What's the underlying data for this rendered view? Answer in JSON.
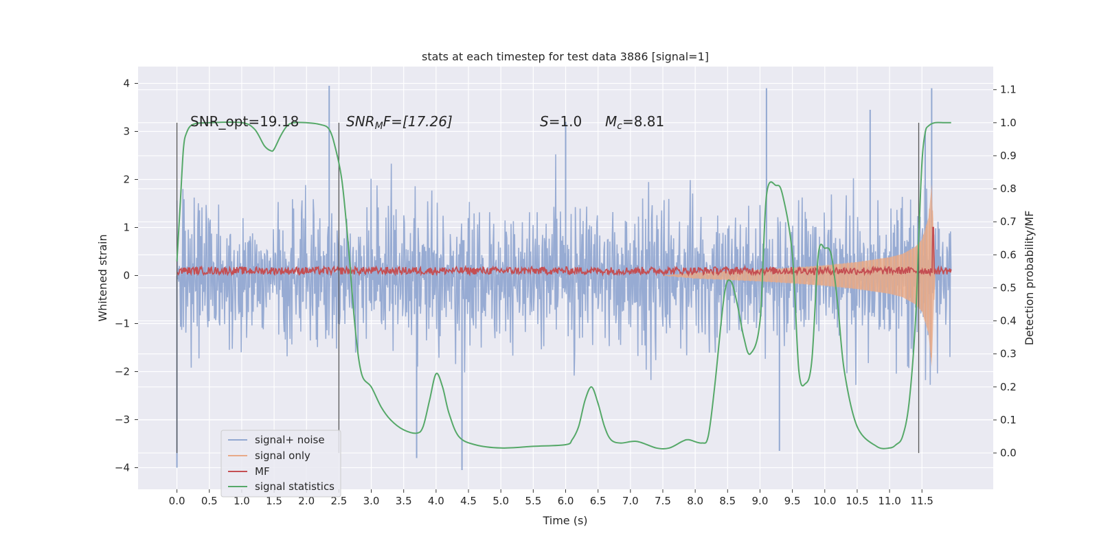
{
  "chart_data": {
    "type": "line",
    "title": "stats at each timestep for test data 3886 [signal=1]",
    "xlabel": "Time (s)",
    "ylabel": "Whitened strain",
    "y2label": "Detection probability/MF",
    "xlim": [
      -0.6,
      12.6
    ],
    "ylim": [
      -4.45,
      4.35
    ],
    "y2lim": [
      -0.11,
      1.17
    ],
    "xticks": [
      "0.0",
      "0.5",
      "1.0",
      "1.5",
      "2.0",
      "2.5",
      "3.0",
      "3.5",
      "4.0",
      "4.5",
      "5.0",
      "5.5",
      "6.0",
      "6.5",
      "7.0",
      "7.5",
      "8.0",
      "8.5",
      "9.0",
      "9.5",
      "10.0",
      "10.5",
      "11.0",
      "11.5"
    ],
    "yticks": [
      "4",
      "3",
      "2",
      "1",
      "0",
      "−1",
      "−2",
      "−3",
      "−4"
    ],
    "y2ticks": [
      "1.1",
      "1.0",
      "0.9",
      "0.8",
      "0.7",
      "0.6",
      "0.5",
      "0.4",
      "0.3",
      "0.2",
      "0.1",
      "0.0"
    ],
    "grid": true,
    "legend": "lower-left",
    "annotations": {
      "snr_opt": "SNR_opt=19.18",
      "snr_mf": "SNR",
      "snr_mf_sub": "M",
      "snr_mf_rest": "F=[17.26]",
      "s_var": "S",
      "s_val": "=1.0",
      "mc_var": "M",
      "mc_sub": "c",
      "mc_val": "=8.81"
    },
    "segment_markers": [
      0.0,
      2.5,
      11.45
    ],
    "series": [
      {
        "name": "signal+ noise",
        "color": "#92a8d1",
        "axis": "left",
        "envelope_approx": {
          "t": [
            0.0,
            2.0,
            4.0,
            6.0,
            8.0,
            10.0,
            11.0,
            11.5,
            11.65,
            11.95
          ],
          "upper": [
            2.4,
            2.4,
            2.4,
            2.4,
            2.4,
            2.5,
            2.6,
            2.8,
            3.0,
            1.7
          ],
          "lower": [
            -2.4,
            -2.4,
            -2.4,
            -2.4,
            -2.4,
            -2.5,
            -2.6,
            -2.8,
            -3.1,
            -2.5
          ]
        },
        "peaks": [
          [
            0.0,
            -4.0
          ],
          [
            2.35,
            3.95
          ],
          [
            3.7,
            -3.8
          ],
          [
            4.4,
            -4.05
          ],
          [
            9.1,
            3.9
          ],
          [
            9.3,
            -3.65
          ],
          [
            11.65,
            3.9
          ],
          [
            11.55,
            3.0
          ],
          [
            10.7,
            3.45
          ],
          [
            6.0,
            3.2
          ]
        ]
      },
      {
        "name": "signal only",
        "color": "#e8a987",
        "axis": "left",
        "amplitude": {
          "t": [
            7.5,
            8.0,
            8.5,
            9.0,
            9.5,
            10.0,
            10.5,
            11.0,
            11.2,
            11.4,
            11.5,
            11.6,
            11.65,
            11.7
          ],
          "a": [
            0.0,
            0.06,
            0.09,
            0.12,
            0.16,
            0.21,
            0.28,
            0.38,
            0.45,
            0.6,
            0.75,
            1.2,
            1.9,
            0.0
          ]
        }
      },
      {
        "name": "MF",
        "color": "#c44e52",
        "axis": "left",
        "baseline": 0.1,
        "spike": [
          11.67,
          1.0
        ]
      },
      {
        "name": "signal statistics",
        "color": "#55a868",
        "axis": "right",
        "x": [
          0.0,
          0.05,
          0.1,
          0.15,
          0.25,
          0.5,
          1.0,
          1.2,
          1.35,
          1.45,
          1.5,
          1.6,
          1.7,
          1.8,
          2.0,
          2.2,
          2.35,
          2.45,
          2.55,
          2.65,
          2.75,
          2.85,
          3.0,
          3.15,
          3.3,
          3.5,
          3.7,
          3.8,
          3.9,
          4.0,
          4.1,
          4.2,
          4.35,
          4.6,
          5.0,
          5.5,
          6.0,
          6.1,
          6.2,
          6.3,
          6.4,
          6.5,
          6.6,
          6.7,
          6.85,
          7.1,
          7.4,
          7.6,
          7.8,
          7.9,
          8.1,
          8.2,
          8.3,
          8.45,
          8.55,
          8.65,
          8.75,
          8.85,
          9.0,
          9.1,
          9.25,
          9.35,
          9.5,
          9.6,
          9.7,
          9.8,
          9.9,
          10.0,
          10.1,
          10.2,
          10.3,
          10.5,
          10.8,
          11.0,
          11.1,
          11.2,
          11.3,
          11.4,
          11.45,
          11.5,
          11.55,
          11.6,
          11.7,
          11.85,
          11.95
        ],
        "y": [
          0.58,
          0.75,
          0.92,
          0.97,
          0.995,
          1.0,
          1.0,
          0.98,
          0.93,
          0.915,
          0.92,
          0.96,
          0.99,
          1.0,
          1.0,
          0.995,
          0.98,
          0.92,
          0.82,
          0.62,
          0.38,
          0.24,
          0.2,
          0.14,
          0.1,
          0.07,
          0.06,
          0.08,
          0.16,
          0.24,
          0.2,
          0.12,
          0.05,
          0.025,
          0.015,
          0.02,
          0.025,
          0.04,
          0.08,
          0.16,
          0.2,
          0.15,
          0.08,
          0.04,
          0.03,
          0.035,
          0.015,
          0.015,
          0.035,
          0.04,
          0.03,
          0.05,
          0.2,
          0.48,
          0.52,
          0.45,
          0.35,
          0.3,
          0.4,
          0.78,
          0.81,
          0.78,
          0.6,
          0.25,
          0.21,
          0.28,
          0.6,
          0.62,
          0.6,
          0.45,
          0.25,
          0.08,
          0.02,
          0.015,
          0.025,
          0.05,
          0.15,
          0.4,
          0.65,
          0.88,
          0.97,
          0.99,
          1.0,
          1.0,
          1.0
        ]
      }
    ]
  }
}
